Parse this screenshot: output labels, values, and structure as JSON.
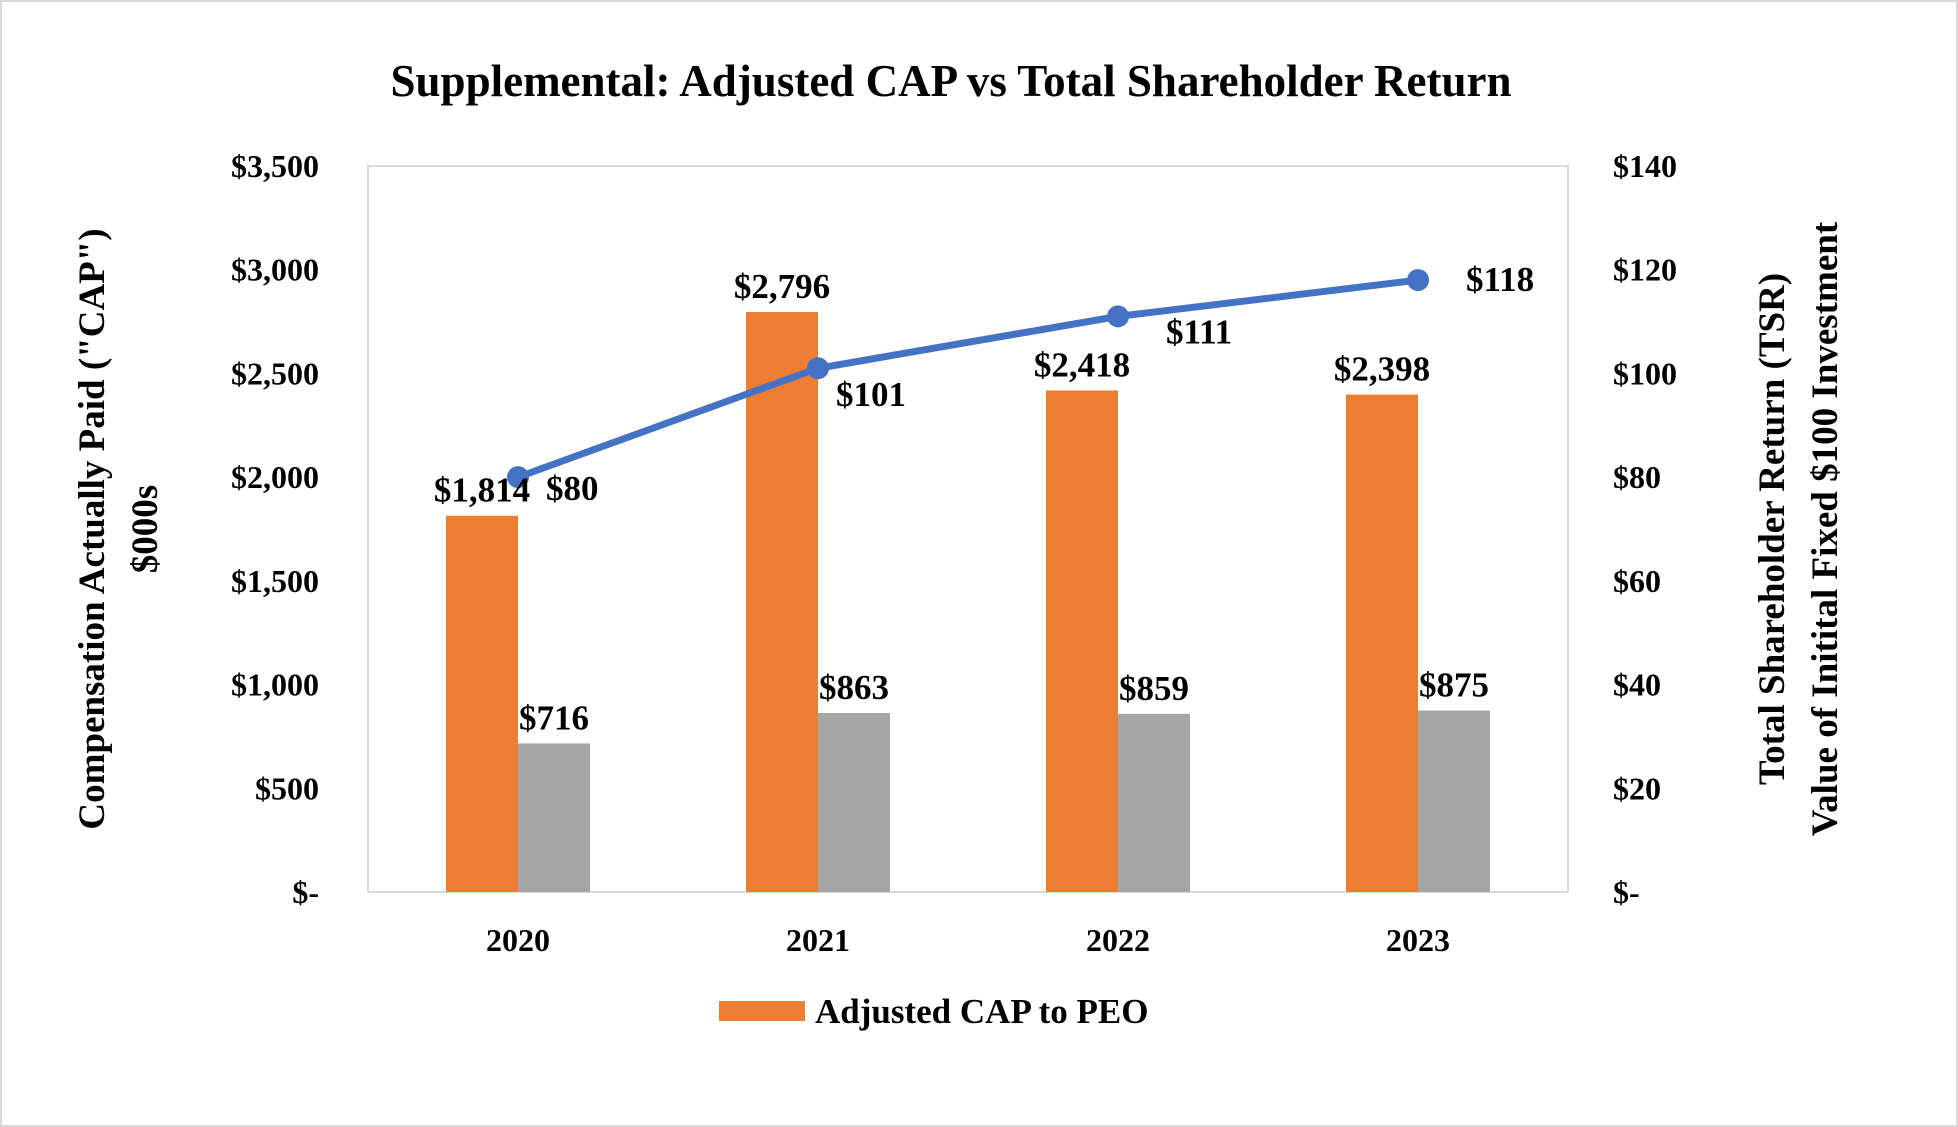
{
  "chart_data": {
    "type": "bar",
    "title": "Supplemental:  Adjusted CAP vs Total Shareholder Return",
    "categories": [
      "2020",
      "2021",
      "2022",
      "2023"
    ],
    "ylabel_lines": [
      "Compensation  Actually  Paid (\"CAP\")",
      "$000s"
    ],
    "y2label_lines": [
      "Total Shareholder  Return (TSR)",
      "Value of Initital Fixed $100 Investment"
    ],
    "ylim": [
      0,
      3500
    ],
    "y2lim": [
      0,
      140
    ],
    "yticks": [
      "$-",
      "$500",
      "$1,000",
      "$1,500",
      "$2,000",
      "$2,500",
      "$3,000",
      "$3,500"
    ],
    "y2ticks": [
      "$-",
      "$20",
      "$40",
      "$60",
      "$80",
      "$100",
      "$120",
      "$140"
    ],
    "grid": false,
    "legend_position": "bottom",
    "series": [
      {
        "name": "Adjusted CAP to PEO",
        "kind": "bar",
        "axis": "left",
        "color": "#ed7d31",
        "values": [
          1814,
          2796,
          2418,
          2398
        ],
        "labels": [
          "$1,814",
          "$2,796",
          "$2,418",
          "$2,398"
        ]
      },
      {
        "kind": "bar",
        "axis": "left",
        "color": "#a5a5a5",
        "values": [
          716,
          863,
          859,
          875
        ],
        "labels": [
          "$716",
          "$863",
          "$859",
          "$875"
        ]
      },
      {
        "kind": "line",
        "axis": "right",
        "color": "#4472c4",
        "values": [
          80,
          101,
          111,
          118
        ],
        "labels": [
          "$80",
          "$101",
          "$111",
          "$118"
        ]
      }
    ]
  }
}
